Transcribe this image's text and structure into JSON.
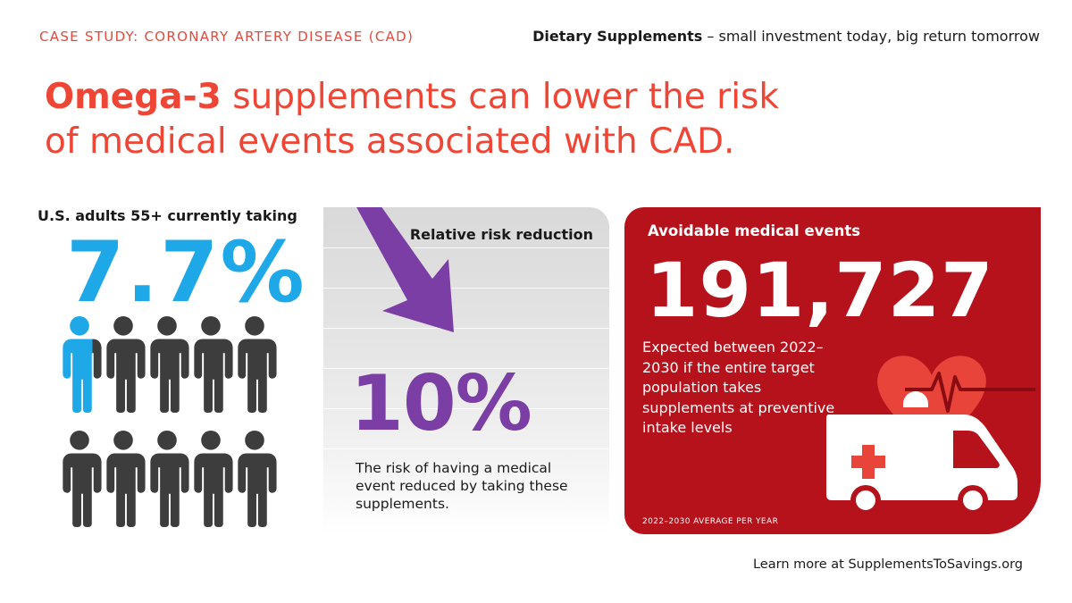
{
  "header": {
    "case_label": "CASE STUDY: CORONARY ARTERY DISEASE (CAD)",
    "tagline_bold": "Dietary Supplements",
    "tagline_rest": " – small investment today, big return tomorrow"
  },
  "headline": {
    "strong": "Omega-3",
    "line1_rest": " supplements can lower the risk",
    "line2": "of medical events associated with CAD."
  },
  "left": {
    "title": "U.S. adults 55+ currently taking",
    "value": "7.7%",
    "people_total": 10,
    "people_fill_fraction": 0.077,
    "colors": {
      "highlight": "#1fa8e8",
      "base": "#3d3d3d"
    }
  },
  "middle": {
    "title": "Relative risk reduction",
    "value": "10%",
    "description": "The risk of having a medical event reduced by taking these supplements.",
    "colors": {
      "accent": "#7b3ea5"
    },
    "icon": "down-arrow-icon"
  },
  "right": {
    "title": "Avoidable medical events",
    "value": "191,727",
    "description": "Expected between 2022–2030 if the entire target population takes supplements at preventive intake levels",
    "footnote": "2022–2030 AVERAGE PER YEAR",
    "colors": {
      "background": "#b5121b",
      "heart": "#e8443a"
    },
    "icons": [
      "heart-icon",
      "heartbeat-line-icon",
      "ambulance-icon"
    ]
  },
  "footer": {
    "prefix": "Learn more at ",
    "link": "SupplementsToSavings.org"
  }
}
